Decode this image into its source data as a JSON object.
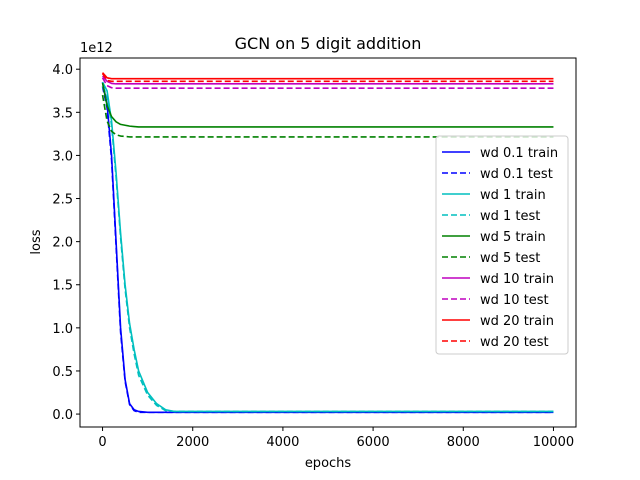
{
  "chart_data": {
    "type": "line",
    "title": "GCN on 5 digit addition",
    "xlabel": "epochs",
    "ylabel": "loss",
    "y_offset_label": "1e12",
    "xlim": [
      -500,
      10500
    ],
    "ylim": [
      -0.15,
      4.13
    ],
    "xticks": [
      0,
      2000,
      4000,
      6000,
      8000,
      10000
    ],
    "xtick_labels": [
      "0",
      "2000",
      "4000",
      "6000",
      "8000",
      "10000"
    ],
    "yticks": [
      0.0,
      0.5,
      1.0,
      1.5,
      2.0,
      2.5,
      3.0,
      3.5,
      4.0
    ],
    "ytick_labels": [
      "0.0",
      "0.5",
      "1.0",
      "1.5",
      "2.0",
      "2.5",
      "3.0",
      "3.5",
      "4.0"
    ],
    "grid": false,
    "legend_position": "right",
    "x": [
      0,
      100,
      200,
      300,
      400,
      500,
      600,
      700,
      800,
      1000,
      1200,
      1400,
      1600,
      1800,
      2000,
      3000,
      5000,
      7500,
      10000
    ],
    "series": [
      {
        "name": "wd 0.1 train",
        "color": "#0000ff",
        "dash": "solid",
        "values": [
          3.85,
          3.6,
          3.0,
          2.0,
          1.0,
          0.4,
          0.12,
          0.05,
          0.03,
          0.02,
          0.02,
          0.02,
          0.02,
          0.02,
          0.02,
          0.02,
          0.02,
          0.02,
          0.02
        ]
      },
      {
        "name": "wd 0.1 test",
        "color": "#0000ff",
        "dash": "dashed",
        "values": [
          3.8,
          3.55,
          2.95,
          1.95,
          0.95,
          0.38,
          0.11,
          0.04,
          0.02,
          0.02,
          0.02,
          0.02,
          0.02,
          0.02,
          0.02,
          0.02,
          0.02,
          0.02,
          0.02
        ]
      },
      {
        "name": "wd 1 train",
        "color": "#00bfbf",
        "dash": "solid",
        "values": [
          3.85,
          3.75,
          3.4,
          2.8,
          2.1,
          1.5,
          1.05,
          0.75,
          0.5,
          0.25,
          0.12,
          0.05,
          0.03,
          0.03,
          0.03,
          0.03,
          0.03,
          0.03,
          0.03
        ]
      },
      {
        "name": "wd 1 test",
        "color": "#00bfbf",
        "dash": "dashed",
        "values": [
          3.8,
          3.7,
          3.35,
          2.75,
          2.05,
          1.45,
          1.0,
          0.7,
          0.45,
          0.22,
          0.1,
          0.04,
          0.03,
          0.03,
          0.03,
          0.03,
          0.03,
          0.03,
          0.03
        ]
      },
      {
        "name": "wd 5 train",
        "color": "#008000",
        "dash": "solid",
        "values": [
          3.84,
          3.58,
          3.45,
          3.39,
          3.36,
          3.35,
          3.34,
          3.335,
          3.33,
          3.33,
          3.33,
          3.33,
          3.33,
          3.33,
          3.33,
          3.33,
          3.33,
          3.33,
          3.33
        ]
      },
      {
        "name": "wd 5 test",
        "color": "#008000",
        "dash": "dashed",
        "values": [
          3.7,
          3.4,
          3.28,
          3.24,
          3.225,
          3.22,
          3.215,
          3.215,
          3.215,
          3.215,
          3.215,
          3.215,
          3.215,
          3.215,
          3.215,
          3.215,
          3.215,
          3.215,
          3.215
        ]
      },
      {
        "name": "wd 10 train",
        "color": "#bf00bf",
        "dash": "solid",
        "values": [
          3.92,
          3.86,
          3.835,
          3.83,
          3.83,
          3.83,
          3.83,
          3.83,
          3.83,
          3.83,
          3.83,
          3.83,
          3.83,
          3.83,
          3.83,
          3.83,
          3.83,
          3.83,
          3.83
        ]
      },
      {
        "name": "wd 10 test",
        "color": "#bf00bf",
        "dash": "dashed",
        "values": [
          3.9,
          3.81,
          3.785,
          3.78,
          3.78,
          3.78,
          3.78,
          3.78,
          3.78,
          3.78,
          3.78,
          3.78,
          3.78,
          3.78,
          3.78,
          3.78,
          3.78,
          3.78,
          3.78
        ]
      },
      {
        "name": "wd 20 train",
        "color": "#ff0000",
        "dash": "solid",
        "values": [
          3.96,
          3.9,
          3.89,
          3.89,
          3.89,
          3.89,
          3.89,
          3.89,
          3.89,
          3.89,
          3.89,
          3.89,
          3.89,
          3.89,
          3.89,
          3.89,
          3.89,
          3.89,
          3.89
        ]
      },
      {
        "name": "wd 20 test",
        "color": "#ff0000",
        "dash": "dashed",
        "values": [
          3.95,
          3.87,
          3.86,
          3.86,
          3.86,
          3.86,
          3.86,
          3.86,
          3.86,
          3.86,
          3.86,
          3.86,
          3.86,
          3.86,
          3.86,
          3.86,
          3.86,
          3.86,
          3.86
        ]
      }
    ]
  }
}
